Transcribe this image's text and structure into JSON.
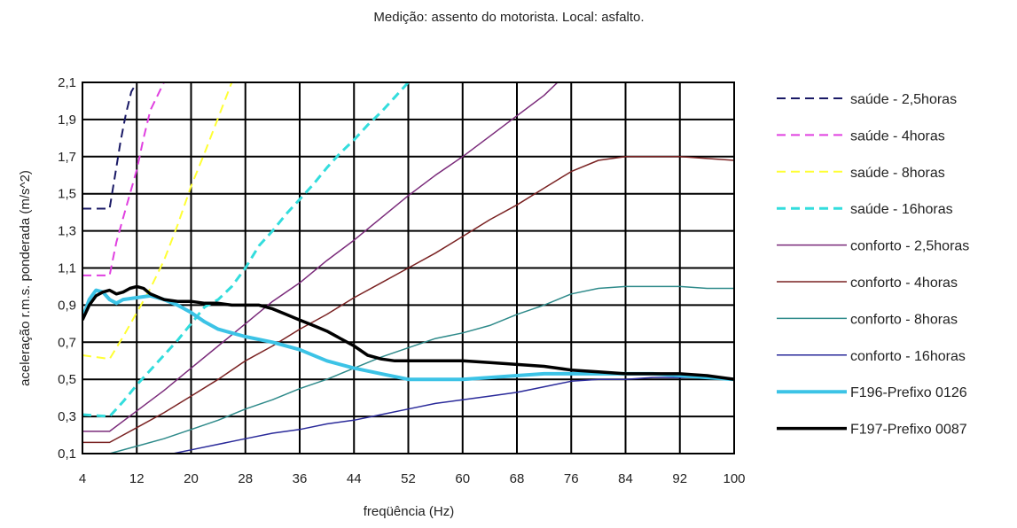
{
  "chart_data": {
    "type": "line",
    "title": "Medição: assento do motorista. Local: asfalto.",
    "xlabel": "freqüência (Hz)",
    "ylabel": "aceleração r.m.s. ponderada (m/s^2)",
    "xlim": [
      4,
      100
    ],
    "ylim": [
      0.1,
      2.1
    ],
    "xticks": [
      "4",
      "12",
      "20",
      "28",
      "36",
      "44",
      "52",
      "60",
      "68",
      "76",
      "84",
      "92",
      "100"
    ],
    "yticks": [
      "0,1",
      "0,3",
      "0,5",
      "0,7",
      "0,9",
      "1,1",
      "1,3",
      "1,5",
      "1,7",
      "1,9",
      "2,1"
    ],
    "grid": true,
    "legend_position": "right",
    "series": [
      {
        "name": "saúde - 2,5horas",
        "color": "#1a1a66",
        "style": "dashed",
        "width": 2,
        "points": [
          [
            4,
            1.42
          ],
          [
            8,
            1.42
          ],
          [
            8.8,
            1.6
          ],
          [
            9.6,
            1.78
          ],
          [
            10.4,
            1.93
          ],
          [
            11.2,
            2.05
          ],
          [
            12,
            2.1
          ]
        ]
      },
      {
        "name": "saúde - 4horas",
        "color": "#e040e0",
        "style": "dashed",
        "width": 2,
        "points": [
          [
            4,
            1.06
          ],
          [
            8,
            1.06
          ],
          [
            9,
            1.24
          ],
          [
            10,
            1.37
          ],
          [
            11,
            1.5
          ],
          [
            12,
            1.63
          ],
          [
            13,
            1.8
          ],
          [
            14,
            1.95
          ],
          [
            16,
            2.1
          ]
        ]
      },
      {
        "name": "saúde - 8horas",
        "color": "#ffff33",
        "style": "dashed",
        "width": 2,
        "points": [
          [
            4,
            0.63
          ],
          [
            8,
            0.61
          ],
          [
            10,
            0.73
          ],
          [
            12,
            0.86
          ],
          [
            14,
            0.99
          ],
          [
            16,
            1.14
          ],
          [
            18,
            1.33
          ],
          [
            20,
            1.54
          ],
          [
            22,
            1.72
          ],
          [
            24,
            1.91
          ],
          [
            26,
            2.1
          ]
        ]
      },
      {
        "name": "saúde - 16horas",
        "color": "#33dddd",
        "style": "dashed",
        "width": 3,
        "points": [
          [
            4,
            0.31
          ],
          [
            8,
            0.3
          ],
          [
            10,
            0.38
          ],
          [
            12,
            0.47
          ],
          [
            14,
            0.55
          ],
          [
            16,
            0.63
          ],
          [
            18,
            0.71
          ],
          [
            20,
            0.8
          ],
          [
            22,
            0.89
          ],
          [
            24,
            0.93
          ],
          [
            26,
            1.0
          ],
          [
            28,
            1.1
          ],
          [
            30,
            1.22
          ],
          [
            32,
            1.3
          ],
          [
            34,
            1.39
          ],
          [
            36,
            1.47
          ],
          [
            38,
            1.55
          ],
          [
            40,
            1.64
          ],
          [
            42,
            1.72
          ],
          [
            44,
            1.79
          ],
          [
            46,
            1.87
          ],
          [
            48,
            1.94
          ],
          [
            50,
            2.02
          ],
          [
            52,
            2.1
          ]
        ]
      },
      {
        "name": "conforto - 2,5horas",
        "color": "#7a2a7a",
        "style": "solid",
        "width": 1.5,
        "points": [
          [
            4,
            0.22
          ],
          [
            8,
            0.22
          ],
          [
            12,
            0.33
          ],
          [
            16,
            0.44
          ],
          [
            20,
            0.56
          ],
          [
            24,
            0.68
          ],
          [
            28,
            0.8
          ],
          [
            32,
            0.92
          ],
          [
            36,
            1.02
          ],
          [
            40,
            1.14
          ],
          [
            44,
            1.25
          ],
          [
            48,
            1.37
          ],
          [
            52,
            1.49
          ],
          [
            56,
            1.6
          ],
          [
            60,
            1.7
          ],
          [
            64,
            1.81
          ],
          [
            68,
            1.92
          ],
          [
            72,
            2.03
          ],
          [
            74,
            2.1
          ]
        ]
      },
      {
        "name": "conforto - 4horas",
        "color": "#7a2222",
        "style": "solid",
        "width": 1.5,
        "points": [
          [
            4,
            0.16
          ],
          [
            8,
            0.16
          ],
          [
            12,
            0.24
          ],
          [
            16,
            0.32
          ],
          [
            20,
            0.41
          ],
          [
            24,
            0.5
          ],
          [
            28,
            0.6
          ],
          [
            32,
            0.68
          ],
          [
            36,
            0.77
          ],
          [
            40,
            0.85
          ],
          [
            44,
            0.94
          ],
          [
            48,
            1.02
          ],
          [
            52,
            1.1
          ],
          [
            56,
            1.18
          ],
          [
            60,
            1.27
          ],
          [
            64,
            1.36
          ],
          [
            68,
            1.44
          ],
          [
            72,
            1.53
          ],
          [
            76,
            1.62
          ],
          [
            80,
            1.68
          ],
          [
            84,
            1.7
          ],
          [
            88,
            1.7
          ],
          [
            92,
            1.7
          ],
          [
            96,
            1.69
          ],
          [
            100,
            1.68
          ]
        ]
      },
      {
        "name": "conforto - 8horas",
        "color": "#2e8a8a",
        "style": "solid",
        "width": 1.5,
        "points": [
          [
            4,
            0.08
          ],
          [
            8,
            0.1
          ],
          [
            12,
            0.14
          ],
          [
            16,
            0.18
          ],
          [
            20,
            0.23
          ],
          [
            24,
            0.28
          ],
          [
            28,
            0.34
          ],
          [
            32,
            0.39
          ],
          [
            36,
            0.45
          ],
          [
            40,
            0.5
          ],
          [
            44,
            0.56
          ],
          [
            48,
            0.62
          ],
          [
            52,
            0.67
          ],
          [
            56,
            0.72
          ],
          [
            60,
            0.75
          ],
          [
            64,
            0.79
          ],
          [
            68,
            0.85
          ],
          [
            72,
            0.9
          ],
          [
            76,
            0.96
          ],
          [
            80,
            0.99
          ],
          [
            84,
            1.0
          ],
          [
            88,
            1.0
          ],
          [
            92,
            1.0
          ],
          [
            96,
            0.99
          ],
          [
            100,
            0.99
          ]
        ]
      },
      {
        "name": "conforto - 16horas",
        "color": "#2a2a9a",
        "style": "solid",
        "width": 1.5,
        "points": [
          [
            4,
            0.04
          ],
          [
            8,
            0.05
          ],
          [
            12,
            0.07
          ],
          [
            16,
            0.09
          ],
          [
            20,
            0.12
          ],
          [
            24,
            0.15
          ],
          [
            28,
            0.18
          ],
          [
            32,
            0.21
          ],
          [
            36,
            0.23
          ],
          [
            40,
            0.26
          ],
          [
            44,
            0.28
          ],
          [
            48,
            0.31
          ],
          [
            52,
            0.34
          ],
          [
            56,
            0.37
          ],
          [
            60,
            0.39
          ],
          [
            64,
            0.41
          ],
          [
            68,
            0.43
          ],
          [
            72,
            0.46
          ],
          [
            76,
            0.49
          ],
          [
            80,
            0.5
          ],
          [
            84,
            0.5
          ],
          [
            88,
            0.51
          ],
          [
            92,
            0.51
          ],
          [
            96,
            0.51
          ],
          [
            100,
            0.5
          ]
        ]
      },
      {
        "name": "F196-Prefixo 0126",
        "color": "#3cc3e6",
        "style": "solid",
        "width": 4,
        "points": [
          [
            4,
            0.83
          ],
          [
            5,
            0.93
          ],
          [
            6,
            0.98
          ],
          [
            7,
            0.97
          ],
          [
            8,
            0.93
          ],
          [
            9,
            0.91
          ],
          [
            10,
            0.93
          ],
          [
            12,
            0.94
          ],
          [
            14,
            0.95
          ],
          [
            16,
            0.93
          ],
          [
            18,
            0.9
          ],
          [
            20,
            0.86
          ],
          [
            22,
            0.81
          ],
          [
            24,
            0.77
          ],
          [
            26,
            0.75
          ],
          [
            28,
            0.73
          ],
          [
            32,
            0.7
          ],
          [
            36,
            0.66
          ],
          [
            40,
            0.6
          ],
          [
            44,
            0.56
          ],
          [
            48,
            0.53
          ],
          [
            52,
            0.5
          ],
          [
            56,
            0.5
          ],
          [
            60,
            0.5
          ],
          [
            64,
            0.51
          ],
          [
            68,
            0.52
          ],
          [
            72,
            0.53
          ],
          [
            76,
            0.53
          ],
          [
            80,
            0.53
          ],
          [
            84,
            0.53
          ],
          [
            88,
            0.53
          ],
          [
            92,
            0.52
          ],
          [
            96,
            0.51
          ],
          [
            100,
            0.5
          ]
        ]
      },
      {
        "name": "F197-Prefixo 0087",
        "color": "#000000",
        "style": "solid",
        "width": 3.5,
        "points": [
          [
            4,
            0.82
          ],
          [
            5,
            0.9
          ],
          [
            6,
            0.95
          ],
          [
            7,
            0.97
          ],
          [
            8,
            0.98
          ],
          [
            9,
            0.96
          ],
          [
            10,
            0.97
          ],
          [
            11,
            0.99
          ],
          [
            12,
            1.0
          ],
          [
            13,
            0.99
          ],
          [
            14,
            0.96
          ],
          [
            16,
            0.93
          ],
          [
            18,
            0.92
          ],
          [
            20,
            0.92
          ],
          [
            22,
            0.91
          ],
          [
            24,
            0.91
          ],
          [
            26,
            0.9
          ],
          [
            28,
            0.9
          ],
          [
            30,
            0.9
          ],
          [
            32,
            0.88
          ],
          [
            34,
            0.85
          ],
          [
            36,
            0.82
          ],
          [
            38,
            0.79
          ],
          [
            40,
            0.76
          ],
          [
            42,
            0.72
          ],
          [
            44,
            0.68
          ],
          [
            46,
            0.63
          ],
          [
            48,
            0.61
          ],
          [
            50,
            0.6
          ],
          [
            52,
            0.6
          ],
          [
            56,
            0.6
          ],
          [
            60,
            0.6
          ],
          [
            64,
            0.59
          ],
          [
            68,
            0.58
          ],
          [
            72,
            0.57
          ],
          [
            76,
            0.55
          ],
          [
            80,
            0.54
          ],
          [
            84,
            0.53
          ],
          [
            88,
            0.53
          ],
          [
            92,
            0.53
          ],
          [
            96,
            0.52
          ],
          [
            100,
            0.5
          ]
        ]
      }
    ]
  }
}
